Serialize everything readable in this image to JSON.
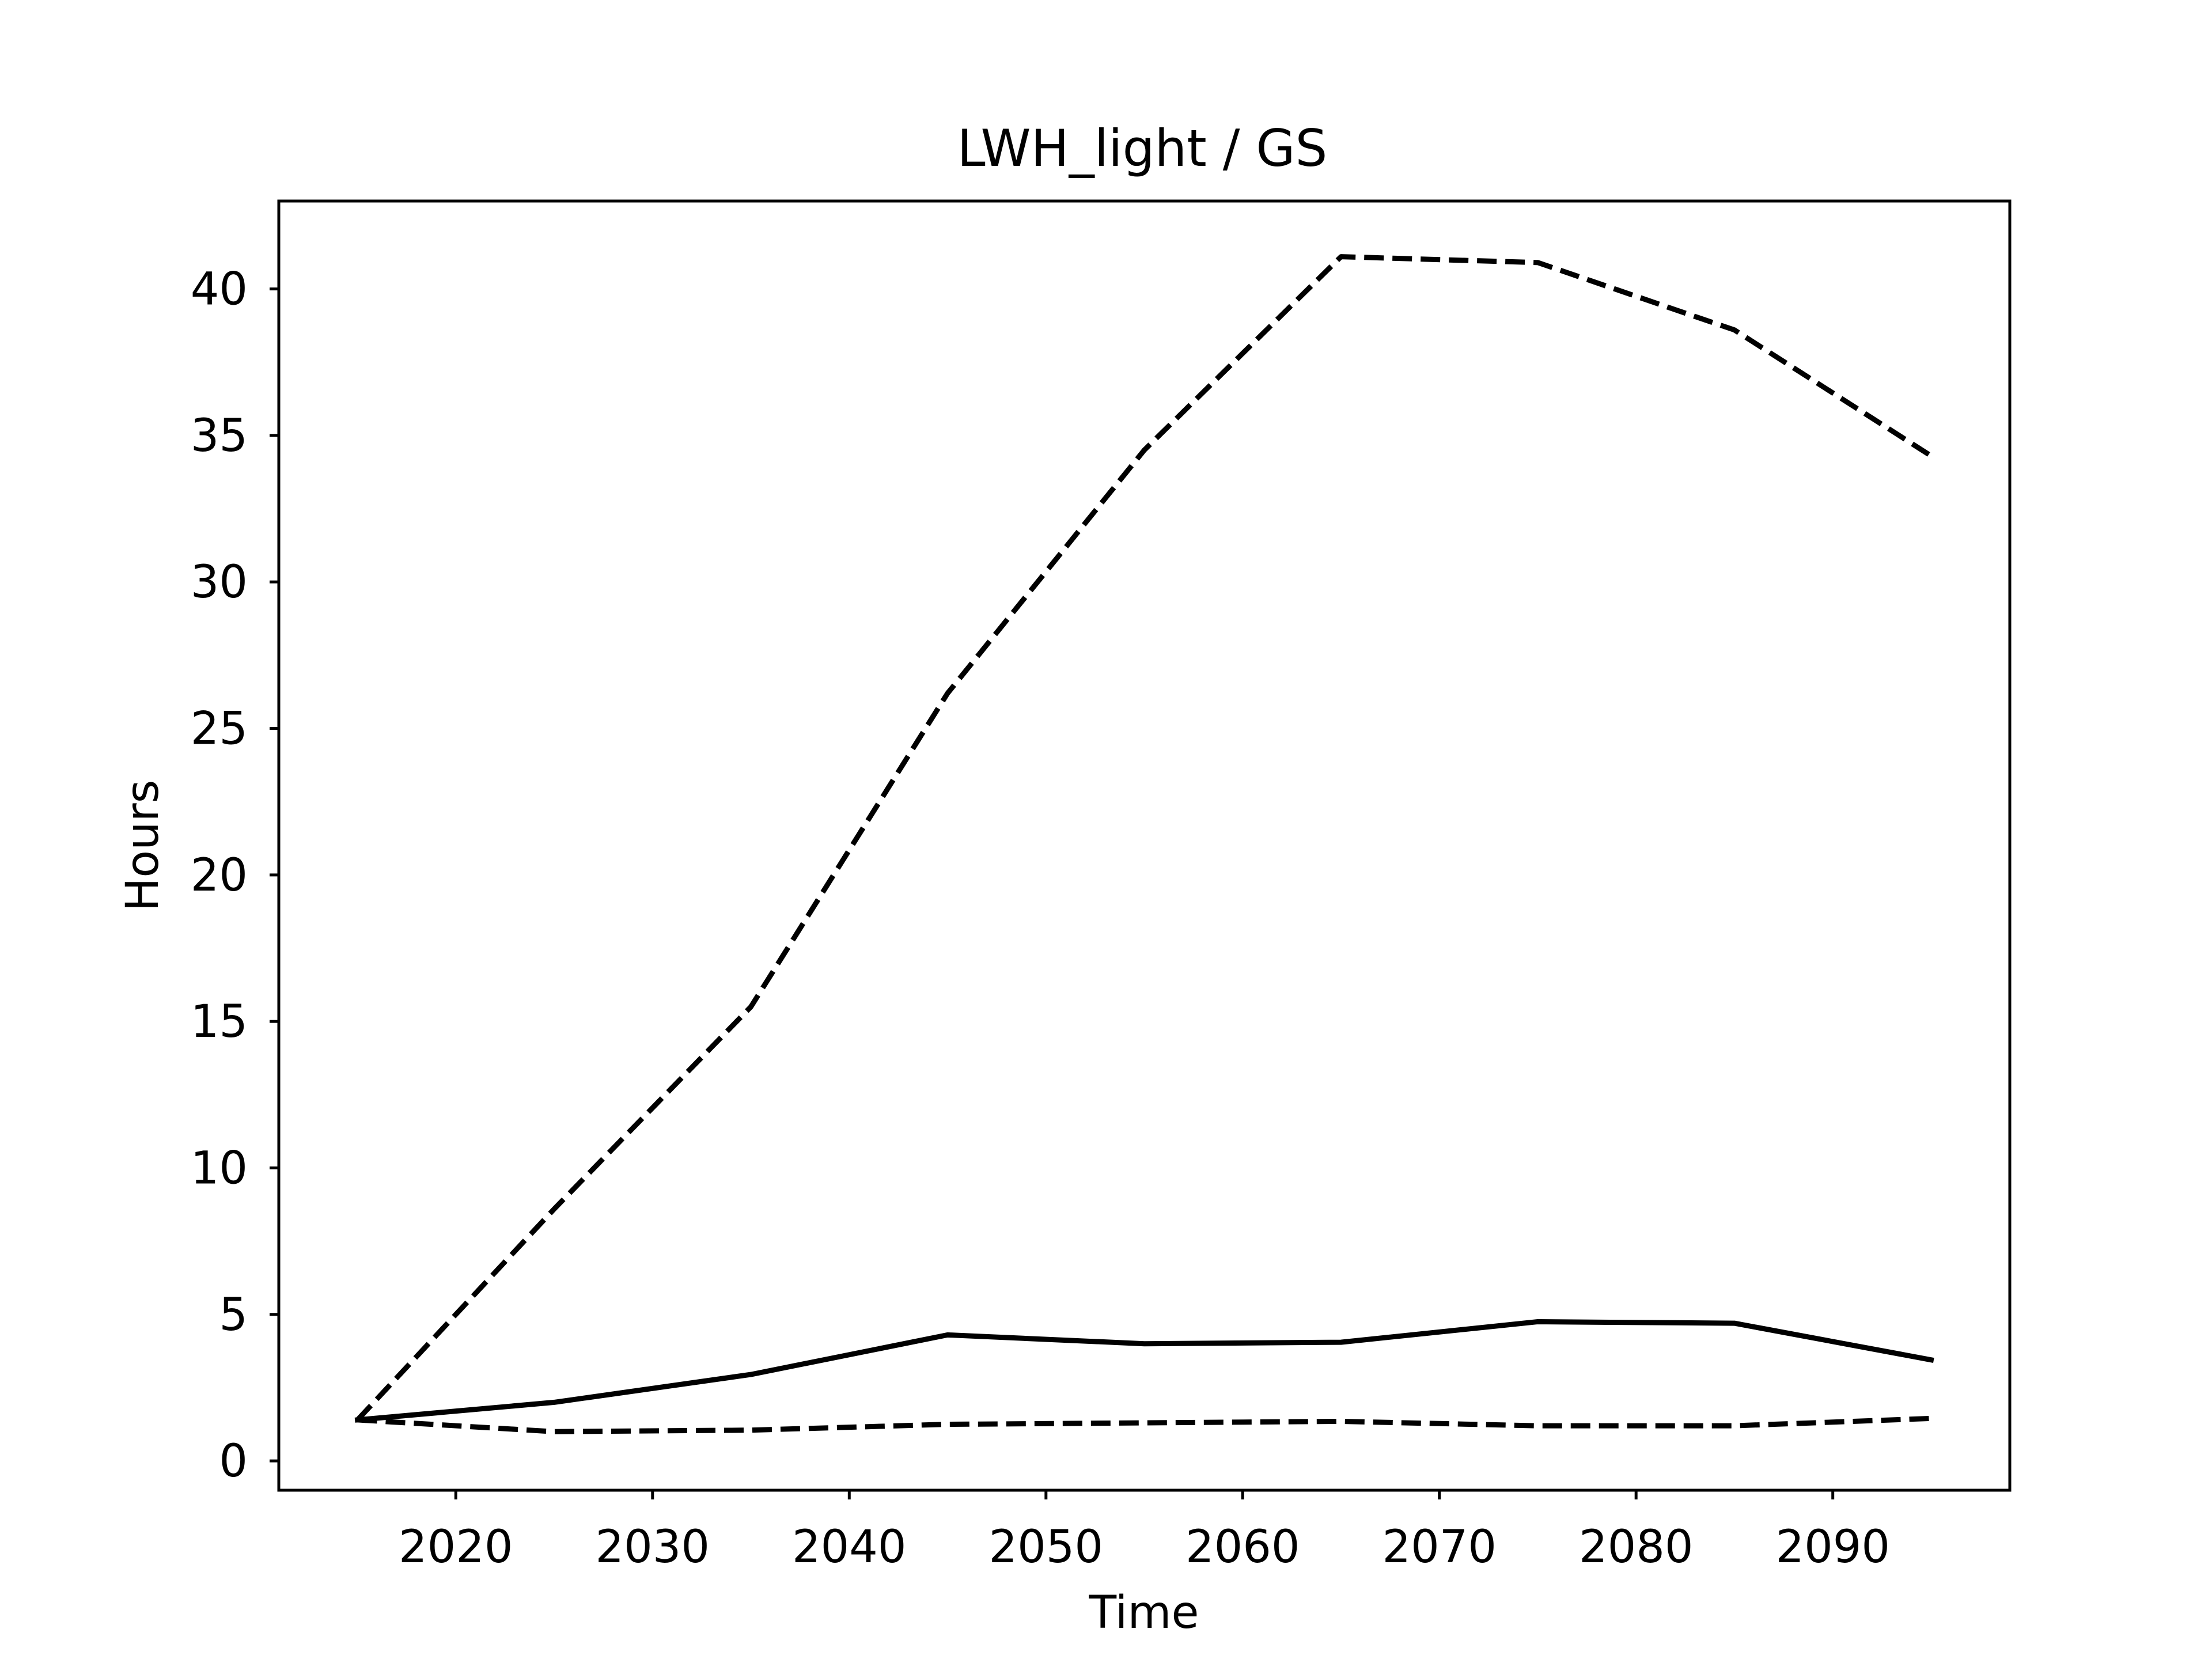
{
  "chart_data": {
    "type": "line",
    "title": "LWH_light / GS",
    "xlabel": "Time",
    "ylabel": "Hours",
    "xlim": [
      2011,
      2099
    ],
    "ylim": [
      -1.0,
      43.0
    ],
    "grid": false,
    "legend": "none",
    "x_ticks": [
      "2020",
      "2030",
      "2040",
      "2050",
      "2060",
      "2070",
      "2080",
      "2090"
    ],
    "y_ticks": [
      "0",
      "5",
      "10",
      "15",
      "20",
      "25",
      "30",
      "35",
      "40"
    ],
    "x_tick_values": [
      2020,
      2030,
      2040,
      2050,
      2060,
      2070,
      2080,
      2090
    ],
    "y_tick_values": [
      0,
      5,
      10,
      15,
      20,
      25,
      30,
      35,
      40
    ],
    "x": [
      2015,
      2025,
      2035,
      2045,
      2055,
      2065,
      2075,
      2085,
      2095
    ],
    "series": [
      {
        "values": [
          1.4,
          2.0,
          2.95,
          4.3,
          4.0,
          4.05,
          4.75,
          4.7,
          3.45
        ],
        "color": "#000000",
        "line_style": "solid"
      },
      {
        "values": [
          1.4,
          8.6,
          15.5,
          26.2,
          34.5,
          41.1,
          40.9,
          38.6,
          34.3
        ],
        "color": "#000000",
        "line_style": "dashed"
      },
      {
        "values": [
          1.4,
          1.0,
          1.05,
          1.25,
          1.3,
          1.35,
          1.2,
          1.2,
          1.45
        ],
        "color": "#000000",
        "line_style": "dashed"
      }
    ]
  }
}
